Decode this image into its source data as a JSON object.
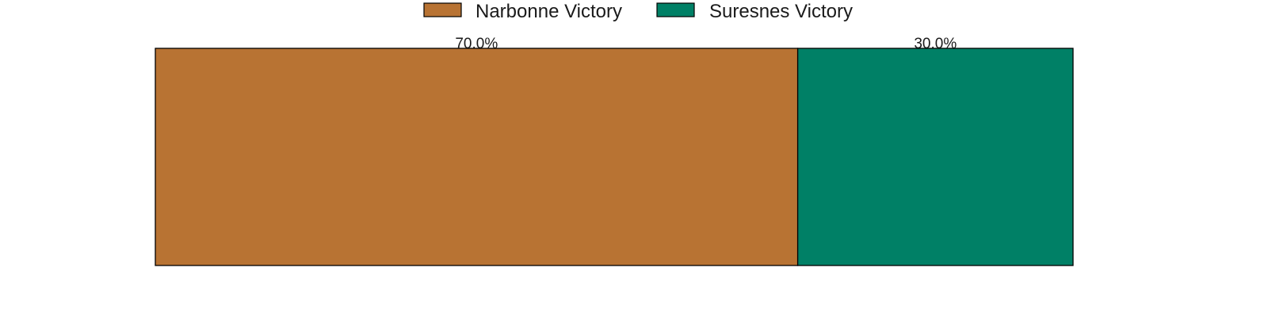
{
  "chart_data": {
    "type": "bar",
    "orientation": "horizontal",
    "stacked": true,
    "categories": [
      ""
    ],
    "series": [
      {
        "name": "Narbonne Victory",
        "values": [
          70.0
        ],
        "color": "#B87333",
        "label": "70.0%"
      },
      {
        "name": "Suresnes Victory",
        "values": [
          30.0
        ],
        "color": "#008066",
        "label": "30.0%"
      }
    ],
    "xlim": [
      0,
      100
    ],
    "title": "",
    "xlabel": "",
    "ylabel": "",
    "grid": false,
    "axes_visible": false,
    "legend_position": "top-center",
    "edge_color": "#000000"
  }
}
